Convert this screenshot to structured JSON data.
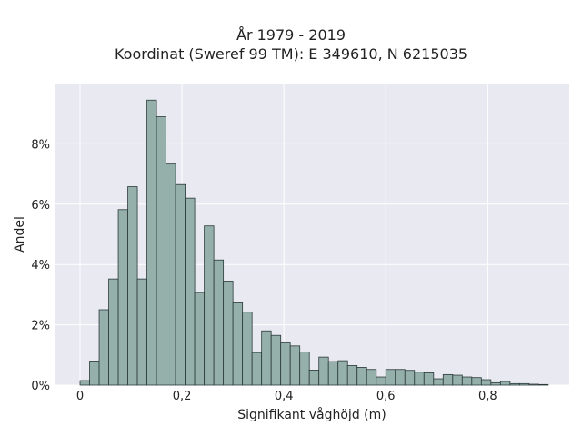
{
  "chart_data": {
    "type": "bar",
    "title": "År 1979 - 2019",
    "subtitle": "Koordinat (Sweref 99 TM): E 349610, N 6215035",
    "xlabel": "Signifikant våghöjd (m)",
    "ylabel": "Andel",
    "xlim": [
      -0.05,
      0.96
    ],
    "ylim": [
      0,
      0.1
    ],
    "x_ticks": [
      0,
      0.2,
      0.4,
      0.6,
      0.8
    ],
    "x_tick_labels": [
      "0",
      "0,2",
      "0,4",
      "0,6",
      "0,8"
    ],
    "y_ticks": [
      0,
      0.02,
      0.04,
      0.06,
      0.08
    ],
    "y_tick_labels": [
      "0%",
      "2%",
      "4%",
      "6%",
      "8%"
    ],
    "grid": true,
    "bin_width": 0.01875,
    "bin_starts": [
      0.0,
      0.01875,
      0.0375,
      0.05625,
      0.075,
      0.09375,
      0.1125,
      0.13125,
      0.15,
      0.16875,
      0.1875,
      0.20625,
      0.225,
      0.24375,
      0.2625,
      0.28125,
      0.3,
      0.31875,
      0.3375,
      0.35625,
      0.375,
      0.39375,
      0.4125,
      0.43125,
      0.45,
      0.46875,
      0.4875,
      0.50625,
      0.525,
      0.54375,
      0.5625,
      0.58125,
      0.6,
      0.61875,
      0.6375,
      0.65625,
      0.675,
      0.69375,
      0.7125,
      0.73125,
      0.75,
      0.76875,
      0.7875,
      0.80625,
      0.825,
      0.84375,
      0.8625,
      0.88125,
      0.9
    ],
    "values": [
      0.0015,
      0.008,
      0.025,
      0.0352,
      0.0582,
      0.0658,
      0.0352,
      0.0945,
      0.089,
      0.0733,
      0.0665,
      0.062,
      0.0307,
      0.0528,
      0.0415,
      0.0345,
      0.0273,
      0.0242,
      0.0108,
      0.018,
      0.0165,
      0.014,
      0.013,
      0.011,
      0.005,
      0.0093,
      0.0078,
      0.0081,
      0.0065,
      0.0059,
      0.0052,
      0.0027,
      0.0052,
      0.0052,
      0.0049,
      0.0043,
      0.0041,
      0.0021,
      0.0035,
      0.0033,
      0.0027,
      0.0025,
      0.0018,
      0.0008,
      0.0012,
      0.0005,
      0.0005,
      0.0003,
      0.0002
    ],
    "bar_color": "#95afab",
    "edge_color": "#2b3a39",
    "background_color": "#e9e9f1",
    "grid_color": "#ffffff"
  }
}
